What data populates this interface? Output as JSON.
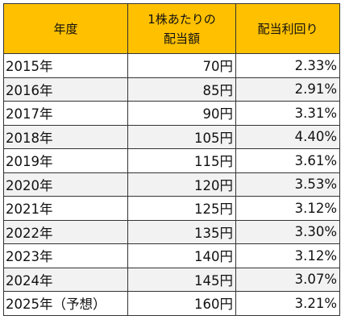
{
  "colors": {
    "header_bg": "#ffc000",
    "stripe_bg": "#f2f2f2",
    "border": "#333333"
  },
  "header": {
    "year": "年度",
    "dividend_line1": "1株あたりの",
    "dividend_line2": "配当額",
    "yield": "配当利回り"
  },
  "rows": [
    {
      "year": "2015年",
      "dividend": "70円",
      "yield": "2.33%"
    },
    {
      "year": "2016年",
      "dividend": "85円",
      "yield": "2.91%"
    },
    {
      "year": "2017年",
      "dividend": "90円",
      "yield": "3.31%"
    },
    {
      "year": "2018年",
      "dividend": "105円",
      "yield": "4.40%"
    },
    {
      "year": "2019年",
      "dividend": "115円",
      "yield": "3.61%"
    },
    {
      "year": "2020年",
      "dividend": "120円",
      "yield": "3.53%"
    },
    {
      "year": "2021年",
      "dividend": "125円",
      "yield": "3.12%"
    },
    {
      "year": "2022年",
      "dividend": "135円",
      "yield": "3.30%"
    },
    {
      "year": "2023年",
      "dividend": "140円",
      "yield": "3.12%"
    },
    {
      "year": "2024年",
      "dividend": "145円",
      "yield": "3.07%"
    },
    {
      "year": "2025年（予想）",
      "dividend": "160円",
      "yield": "3.21%"
    }
  ]
}
